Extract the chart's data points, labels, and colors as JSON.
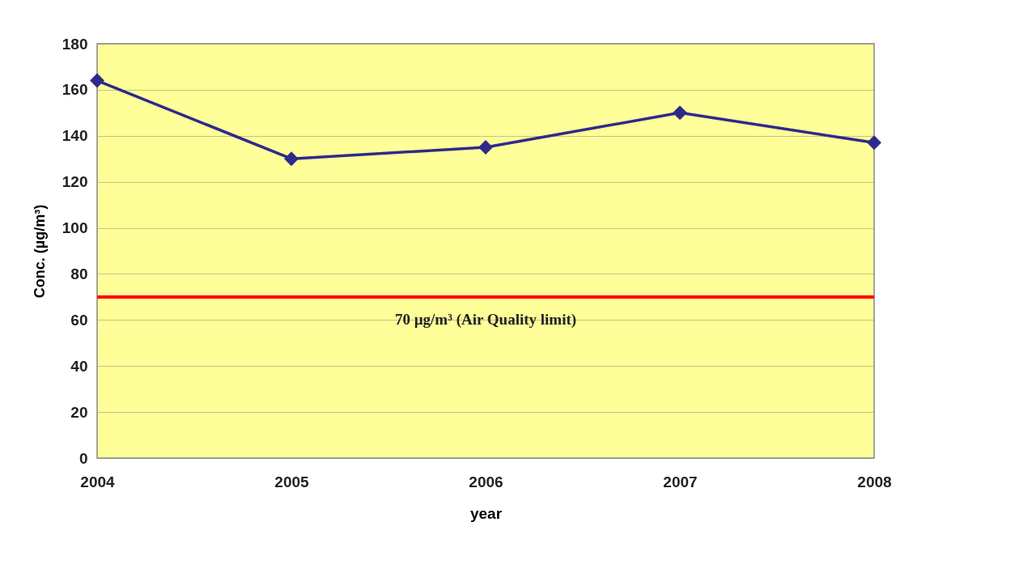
{
  "chart_data": {
    "type": "line",
    "x": [
      2004,
      2005,
      2006,
      2007,
      2008
    ],
    "series": [
      {
        "color": "#2e2a8c",
        "values": [
          164,
          130,
          135,
          150,
          137
        ]
      }
    ],
    "xlim": [
      2004,
      2008
    ],
    "xticks": [
      2004,
      2005,
      2006,
      2007,
      2008
    ],
    "ylim": [
      0,
      180
    ],
    "yticks": [
      0,
      20,
      40,
      60,
      80,
      100,
      120,
      140,
      160,
      180
    ],
    "xlabel": "year",
    "ylabel": "Conc. (µg/m³)",
    "ref_lines": [
      {
        "axis": "y",
        "value": 70,
        "label": "70 µg/m³ (Air Quality limit)",
        "color": "#ff0000"
      }
    ],
    "grid": "y",
    "marker": "diamond",
    "line_style": "solid"
  }
}
